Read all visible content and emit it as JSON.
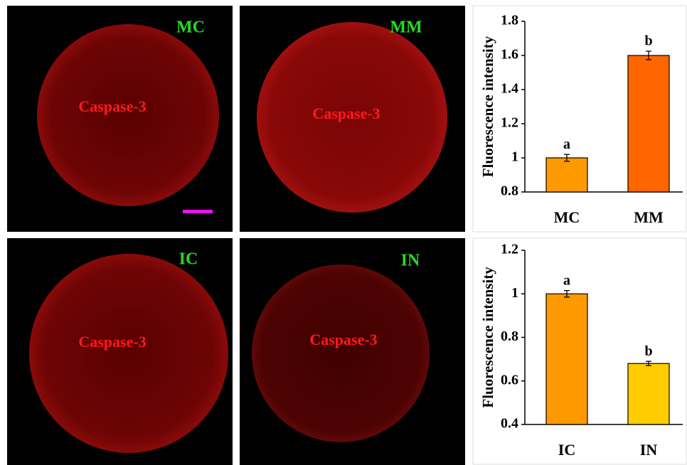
{
  "panels": [
    {
      "label": "MC",
      "stain": "Caspase-3"
    },
    {
      "label": "MM",
      "stain": "Caspase-3"
    },
    {
      "label": "IC",
      "stain": "Caspase-3"
    },
    {
      "label": "IN",
      "stain": "Caspase-3"
    }
  ],
  "chart_data": [
    {
      "type": "bar",
      "y_label": "Fluorescence intensity",
      "categories": [
        "MC",
        "MM"
      ],
      "values": [
        1.0,
        1.6
      ],
      "errors": [
        0.02,
        0.025
      ],
      "annotations": [
        "a",
        "b"
      ],
      "colors": [
        "#ff9900",
        "#ff6600"
      ],
      "ylim": [
        0.8,
        1.8
      ],
      "yticks": [
        0.8,
        1,
        1.2,
        1.4,
        1.6,
        1.8
      ]
    },
    {
      "type": "bar",
      "y_label": "Fluorescence intensity",
      "categories": [
        "IC",
        "IN"
      ],
      "values": [
        1.0,
        0.68
      ],
      "errors": [
        0.015,
        0.01
      ],
      "annotations": [
        "a",
        "b"
      ],
      "colors": [
        "#ff9900",
        "#ffcc00"
      ],
      "ylim": [
        0.4,
        1.2
      ],
      "yticks": [
        0.4,
        0.6,
        0.8,
        1,
        1.2
      ]
    }
  ]
}
